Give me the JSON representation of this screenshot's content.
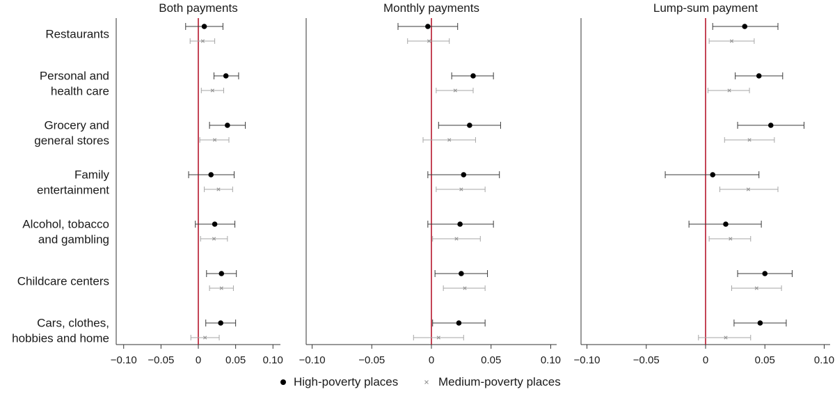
{
  "chart_data": [
    {
      "type": "scatter",
      "title": "Both payments",
      "categories": [
        "Restaurants",
        "Personal and health care",
        "Grocery and general stores",
        "Family entertainment",
        "Alcohol, tobacco and gambling",
        "Childcare centers",
        "Cars, clothes, hobbies and home"
      ],
      "series": [
        {
          "name": "High-poverty places",
          "marker": "dot",
          "color": "#000000",
          "values": [
            0.008,
            0.037,
            0.039,
            0.017,
            0.022,
            0.031,
            0.03
          ],
          "lower": [
            -0.017,
            0.021,
            0.015,
            -0.013,
            -0.004,
            0.011,
            0.01
          ],
          "upper": [
            0.033,
            0.054,
            0.063,
            0.048,
            0.049,
            0.051,
            0.05
          ]
        },
        {
          "name": "Medium-poverty places",
          "marker": "x",
          "color": "#999999",
          "values": [
            0.006,
            0.019,
            0.022,
            0.027,
            0.021,
            0.031,
            0.009
          ],
          "lower": [
            -0.011,
            0.004,
            0.002,
            0.008,
            0.003,
            0.015,
            -0.01
          ],
          "upper": [
            0.022,
            0.034,
            0.041,
            0.046,
            0.039,
            0.047,
            0.028
          ]
        }
      ],
      "xlim": [
        -0.11,
        0.11
      ],
      "xticks": [
        "−0.10",
        "−0.05",
        "0",
        "0.05",
        "0.10"
      ],
      "xtick_values": [
        -0.1,
        -0.05,
        0,
        0.05,
        0.1
      ],
      "reference_line": {
        "x": 0,
        "color": "#b5162c"
      }
    },
    {
      "type": "scatter",
      "title": "Monthly payments",
      "series": [
        {
          "name": "High-poverty places",
          "marker": "dot",
          "color": "#000000",
          "values": [
            -0.003,
            0.035,
            0.032,
            0.027,
            0.024,
            0.025,
            0.023
          ],
          "lower": [
            -0.028,
            0.017,
            0.006,
            -0.003,
            -0.003,
            0.003,
            0.001
          ],
          "upper": [
            0.022,
            0.052,
            0.058,
            0.057,
            0.052,
            0.047,
            0.045
          ]
        },
        {
          "name": "Medium-poverty places",
          "marker": "x",
          "color": "#999999",
          "values": [
            -0.002,
            0.02,
            0.015,
            0.025,
            0.021,
            0.028,
            0.006
          ],
          "lower": [
            -0.02,
            0.004,
            -0.007,
            0.004,
            0.001,
            0.01,
            -0.015
          ],
          "upper": [
            0.015,
            0.035,
            0.037,
            0.045,
            0.041,
            0.045,
            0.027
          ]
        }
      ],
      "xlim": [
        -0.105,
        0.105
      ],
      "xticks": [
        "−0.10",
        "−0.05",
        "0",
        "0.05",
        "0.10"
      ],
      "xtick_values": [
        -0.1,
        -0.05,
        0,
        0.05,
        0.1
      ],
      "reference_line": {
        "x": 0,
        "color": "#b5162c"
      }
    },
    {
      "type": "scatter",
      "title": "Lump-sum payment",
      "series": [
        {
          "name": "High-poverty places",
          "marker": "dot",
          "color": "#000000",
          "values": [
            0.033,
            0.045,
            0.055,
            0.006,
            0.017,
            0.05,
            0.046
          ],
          "lower": [
            0.006,
            0.025,
            0.027,
            -0.034,
            -0.014,
            0.027,
            0.024
          ],
          "upper": [
            0.061,
            0.065,
            0.083,
            0.045,
            0.047,
            0.073,
            0.068
          ]
        },
        {
          "name": "Medium-poverty places",
          "marker": "x",
          "color": "#999999",
          "values": [
            0.022,
            0.02,
            0.037,
            0.036,
            0.021,
            0.043,
            0.017
          ],
          "lower": [
            0.003,
            0.002,
            0.016,
            0.012,
            0.003,
            0.022,
            -0.006
          ],
          "upper": [
            0.041,
            0.037,
            0.058,
            0.061,
            0.038,
            0.064,
            0.038
          ]
        }
      ],
      "xlim": [
        -0.105,
        0.105
      ],
      "xticks": [
        "−0.10",
        "−0.05",
        "0",
        "0.05",
        "0.10"
      ],
      "xtick_values": [
        -0.1,
        -0.05,
        0,
        0.05,
        0.1
      ],
      "reference_line": {
        "x": 0,
        "color": "#b5162c"
      }
    }
  ],
  "legend": {
    "position": "bottom-center",
    "items": [
      {
        "label": "High-poverty places",
        "marker": "dot"
      },
      {
        "label": "Medium-poverty places",
        "marker": "x"
      }
    ]
  },
  "category_label_lines": [
    [
      "Restaurants"
    ],
    [
      "Personal and",
      "health care"
    ],
    [
      "Grocery and",
      "general stores"
    ],
    [
      "Family",
      "entertainment"
    ],
    [
      "Alcohol, tobacco",
      "and gambling"
    ],
    [
      "Childcare centers"
    ],
    [
      "Cars, clothes,",
      "hobbies and home"
    ]
  ]
}
